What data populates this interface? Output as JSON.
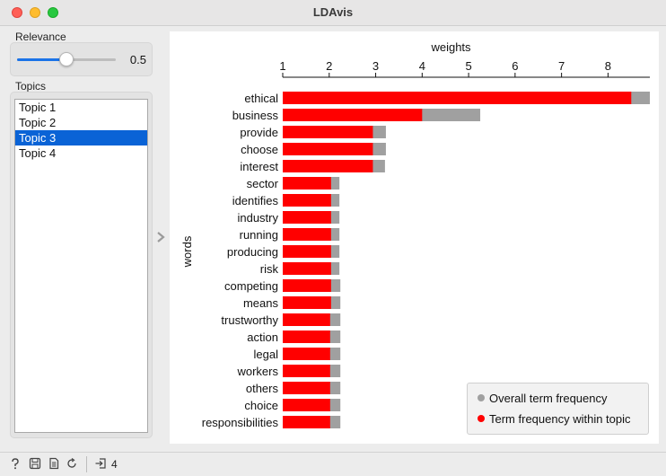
{
  "window": {
    "title": "LDAvis"
  },
  "relevance": {
    "label": "Relevance",
    "value": 0.5,
    "value_text": "0.5"
  },
  "topics": {
    "label": "Topics",
    "items": [
      "Topic 1",
      "Topic 2",
      "Topic 3",
      "Topic 4"
    ],
    "selected_index": 2
  },
  "legend": {
    "overall_label": "Overall term frequency",
    "within_label": "Term frequency within topic"
  },
  "colors": {
    "within": "#ff0000",
    "overall": "#a0a0a0",
    "selection": "#0a63d6"
  },
  "status": {
    "output_count": "4"
  },
  "chart_data": {
    "type": "bar",
    "orientation": "horizontal",
    "title": "weights",
    "xlabel": "weights",
    "ylabel": "words",
    "xlim": [
      1,
      8.9
    ],
    "x_ticks": [
      1,
      2,
      3,
      4,
      5,
      6,
      7,
      8
    ],
    "tick_labels": [
      "1",
      "2",
      "3",
      "4",
      "5",
      "6",
      "7",
      "8"
    ],
    "x_axis_position": "top",
    "categories": [
      "ethical",
      "business",
      "provide",
      "choose",
      "interest",
      "sector",
      "identifies",
      "industry",
      "running",
      "producing",
      "risk",
      "competing",
      "means",
      "trustworthy",
      "action",
      "legal",
      "workers",
      "others",
      "choice",
      "responsibilities"
    ],
    "series": [
      {
        "name": "Overall term frequency",
        "color": "#a0a0a0",
        "values": [
          8.9,
          5.25,
          3.22,
          3.22,
          3.2,
          2.22,
          2.22,
          2.22,
          2.22,
          2.22,
          2.22,
          2.24,
          2.24,
          2.24,
          2.24,
          2.24,
          2.24,
          2.24,
          2.24,
          2.24
        ]
      },
      {
        "name": "Term frequency within topic",
        "color": "#ff0000",
        "values": [
          8.5,
          4.0,
          2.94,
          2.94,
          2.94,
          2.04,
          2.04,
          2.04,
          2.04,
          2.04,
          2.04,
          2.04,
          2.04,
          2.02,
          2.02,
          2.02,
          2.02,
          2.02,
          2.02,
          2.02
        ]
      }
    ],
    "grid": false,
    "legend_position": "bottom-right"
  }
}
